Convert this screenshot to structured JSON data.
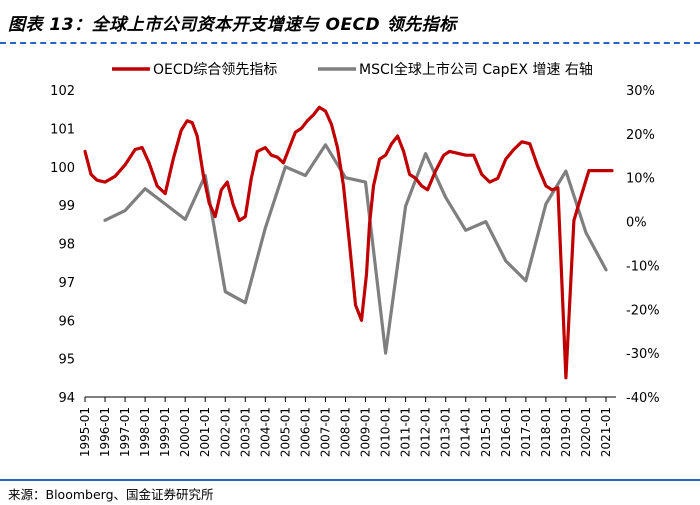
{
  "title": "图表 13：全球上市公司资本开支增速与 OECD 领先指标",
  "source": "来源：Bloomberg、国金证券研究所",
  "chart_data": {
    "type": "line",
    "title": "图表 13：全球上市公司资本开支增速与 OECD 领先指标",
    "legend_position": "top",
    "x_labels": [
      "1995-01",
      "1996-01",
      "1997-01",
      "1998-01",
      "1999-01",
      "2000-01",
      "2001-01",
      "2002-01",
      "2003-01",
      "2004-01",
      "2005-01",
      "2006-01",
      "2007-01",
      "2008-01",
      "2009-01",
      "2010-01",
      "2011-01",
      "2012-01",
      "2013-01",
      "2014-01",
      "2015-01",
      "2016-01",
      "2017-01",
      "2018-01",
      "2019-01",
      "2020-01",
      "2021-01"
    ],
    "x_range": [
      1995.0,
      2021.5
    ],
    "left_axis": {
      "ylim": [
        94,
        102
      ],
      "ticks": [
        "94",
        "95",
        "96",
        "97",
        "98",
        "99",
        "100",
        "101",
        "102"
      ],
      "tick_values": [
        94,
        95,
        96,
        97,
        98,
        99,
        100,
        101,
        102
      ]
    },
    "right_axis": {
      "ylim": [
        -40,
        30
      ],
      "ticks": [
        "-40%",
        "-30%",
        "-20%",
        "-10%",
        "0%",
        "10%",
        "20%",
        "30%"
      ],
      "tick_values": [
        -40,
        -30,
        -20,
        -10,
        0,
        10,
        20,
        30
      ]
    },
    "series": [
      {
        "name": "OECD综合领先指标",
        "axis": "left",
        "color": "#c00000",
        "x": [
          1995.0,
          1995.3,
          1995.6,
          1996.0,
          1996.5,
          1997.0,
          1997.5,
          1997.85,
          1998.2,
          1998.6,
          1999.0,
          1999.4,
          1999.8,
          2000.1,
          2000.35,
          2000.6,
          2000.9,
          2001.2,
          2001.5,
          2001.8,
          2002.1,
          2002.4,
          2002.7,
          2003.0,
          2003.3,
          2003.6,
          2004.0,
          2004.3,
          2004.6,
          2004.9,
          2005.2,
          2005.5,
          2005.8,
          2006.1,
          2006.4,
          2006.7,
          2007.0,
          2007.3,
          2007.6,
          2007.9,
          2008.2,
          2008.5,
          2008.8,
          2009.05,
          2009.2,
          2009.4,
          2009.7,
          2010.0,
          2010.3,
          2010.6,
          2010.9,
          2011.2,
          2011.5,
          2011.8,
          2012.1,
          2012.5,
          2012.9,
          2013.2,
          2013.6,
          2014.0,
          2014.4,
          2014.8,
          2015.2,
          2015.6,
          2016.0,
          2016.4,
          2016.8,
          2017.2,
          2017.6,
          2018.0,
          2018.3,
          2018.6,
          2019.0,
          2019.4,
          2019.8,
          2020.15,
          2020.3,
          2020.45,
          2020.6,
          2020.9,
          2021.1,
          2021.3
        ],
        "values": [
          100.4,
          99.8,
          99.65,
          99.6,
          99.75,
          100.05,
          100.45,
          100.5,
          100.1,
          99.5,
          99.3,
          100.2,
          100.95,
          101.2,
          101.15,
          100.8,
          99.8,
          99.05,
          98.7,
          99.4,
          99.6,
          99.0,
          98.6,
          98.7,
          99.7,
          100.4,
          100.5,
          100.3,
          100.25,
          100.1,
          100.5,
          100.9,
          101.0,
          101.2,
          101.35,
          101.55,
          101.45,
          101.1,
          100.5,
          99.5,
          98.0,
          96.4,
          96.0,
          97.2,
          98.5,
          99.5,
          100.2,
          100.3,
          100.6,
          100.8,
          100.4,
          99.8,
          99.7,
          99.5,
          99.4,
          99.9,
          100.3,
          100.4,
          100.35,
          100.3,
          100.3,
          99.8,
          99.6,
          99.7,
          100.2,
          100.45,
          100.65,
          100.6,
          100.0,
          99.5,
          99.4,
          99.45,
          94.5,
          98.6,
          99.3,
          99.9,
          99.9,
          99.9,
          99.9,
          99.9,
          99.9,
          99.9
        ]
      },
      {
        "name": "MSCI全球上市公司 CapEX 增速 右轴",
        "axis": "right",
        "color": "#7f7f7f",
        "x": [
          1996.0,
          1997.0,
          1998.0,
          1999.0,
          2000.0,
          2001.0,
          2002.0,
          2003.0,
          2004.0,
          2005.0,
          2006.0,
          2007.0,
          2008.0,
          2009.0,
          2010.0,
          2011.0,
          2012.0,
          2013.0,
          2014.0,
          2015.0,
          2016.0,
          2017.0,
          2018.0,
          2019.0,
          2020.0,
          2021.0
        ],
        "values": [
          0.3,
          2.5,
          7.5,
          4.0,
          0.5,
          10.5,
          -16.0,
          -18.5,
          -1.5,
          12.5,
          10.5,
          17.5,
          10.0,
          9.0,
          -30.0,
          3.5,
          15.5,
          5.5,
          -2.0,
          0.0,
          -9.0,
          -13.5,
          4.0,
          11.5,
          -2.5,
          -11.0
        ]
      }
    ]
  }
}
